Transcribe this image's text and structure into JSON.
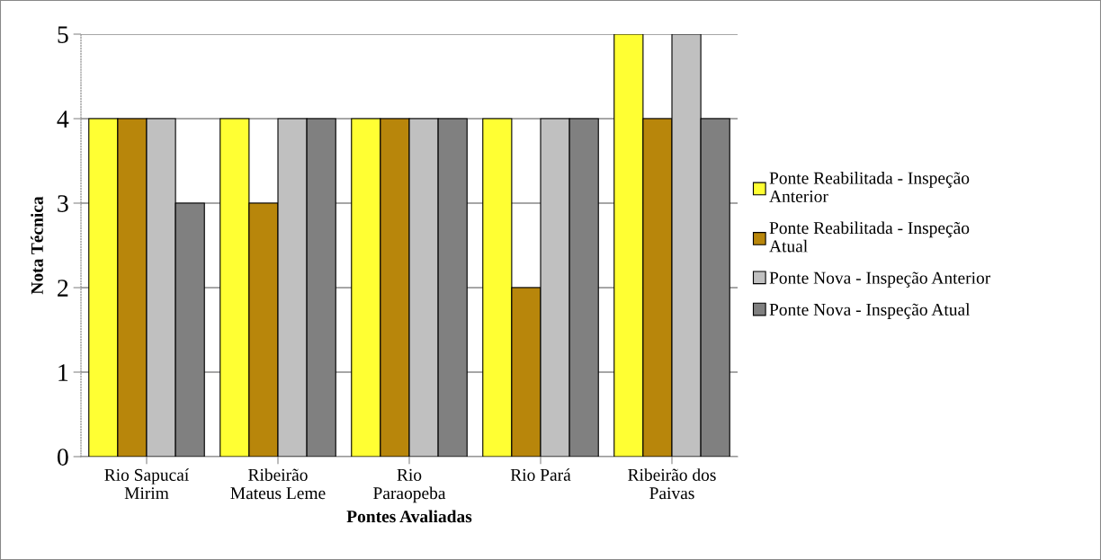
{
  "chart_data": {
    "type": "bar",
    "xlabel": "Pontes Avaliadas",
    "ylabel": "Nota Técnica",
    "categories": [
      "Rio Sapucaí\nMirim",
      "Ribeirão\nMateus Leme",
      "Rio\nParaopeba",
      "Rio Pará",
      "Ribeirão dos\nPaivas"
    ],
    "series": [
      {
        "name": "Ponte Reabilitada - Inspeção\nAnterior",
        "color": "#ffff33",
        "values": [
          4,
          4,
          4,
          4,
          5
        ]
      },
      {
        "name": "Ponte Reabilitada - Inspeção\nAtual",
        "color": "#b8860b",
        "values": [
          4,
          3,
          4,
          2,
          4
        ]
      },
      {
        "name": "Ponte Nova - Inspeção Anterior",
        "color": "#c0c0c0",
        "values": [
          4,
          4,
          4,
          4,
          5
        ]
      },
      {
        "name": "Ponte Nova - Inspeção Atual",
        "color": "#808080",
        "values": [
          3,
          4,
          4,
          4,
          4
        ]
      }
    ],
    "ylim": [
      0,
      5
    ],
    "yticks": [
      0,
      1,
      2,
      3,
      4,
      5
    ],
    "grid": "y",
    "legend": "right"
  }
}
